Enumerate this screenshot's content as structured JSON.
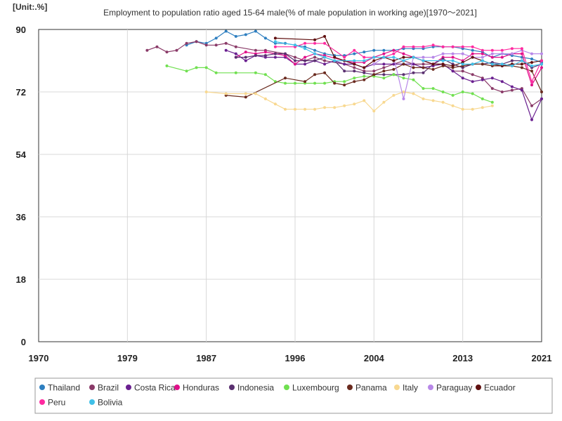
{
  "chart_data": {
    "type": "line",
    "unit_label": "[Unit:.%]",
    "title": "Employment to population ratio aged 15-64 male(% of male population in working age)[1970〜2021]",
    "xlim": [
      1970,
      2021
    ],
    "ylim": [
      0,
      90
    ],
    "x_ticks": [
      1970,
      1979,
      1987,
      1996,
      2004,
      2013,
      2021
    ],
    "y_ticks": [
      0,
      18,
      36,
      54,
      72,
      90
    ],
    "grid": true,
    "legend_position": "bottom",
    "series": [
      {
        "name": "Thailand",
        "color": "#2e7fc0",
        "x": [
          1985,
          1986,
          1987,
          1988,
          1989,
          1990,
          1991,
          1992,
          1993,
          1994,
          1995,
          1996,
          1997,
          1998,
          1999,
          2000,
          2001,
          2002,
          2003,
          2004,
          2005,
          2006,
          2007,
          2008,
          2009,
          2010,
          2011,
          2012,
          2013,
          2014,
          2015,
          2016,
          2017,
          2018,
          2019,
          2020,
          2021
        ],
        "y": [
          85.5,
          86.5,
          86,
          87.5,
          89.5,
          88,
          88.5,
          89.5,
          87.5,
          86,
          86,
          85.5,
          85,
          84,
          83,
          82.5,
          82.5,
          83,
          83.5,
          84,
          84,
          84,
          84.5,
          84.5,
          84.5,
          85,
          85,
          85,
          84.5,
          84,
          83.5,
          82,
          83,
          82.5,
          82,
          81.5,
          80.5
        ]
      },
      {
        "name": "Brazil",
        "color": "#8a3a68",
        "x": [
          1981,
          1982,
          1983,
          1984,
          1985,
          1986,
          1987,
          1988,
          1989,
          1990,
          1992,
          1993,
          1995,
          1996,
          1997,
          1998,
          1999,
          2001,
          2002,
          2003,
          2004,
          2005,
          2006,
          2007,
          2008,
          2009,
          2011,
          2012,
          2013,
          2014,
          2015,
          2016,
          2017,
          2018,
          2019,
          2020,
          2021
        ],
        "y": [
          84,
          85,
          83.5,
          84,
          86,
          86.5,
          85.5,
          85.5,
          86,
          85,
          84,
          84,
          83,
          82,
          81,
          82,
          81,
          80,
          79,
          78,
          78,
          79,
          80,
          81,
          80,
          80,
          80,
          78,
          78,
          77,
          76,
          73,
          72,
          72.5,
          73,
          68,
          70
        ]
      },
      {
        "name": "Costa Rica",
        "color": "#6a2090",
        "x": [
          1989,
          1990,
          1991,
          1992,
          1993,
          1994,
          1995,
          1996,
          1997,
          1998,
          1999,
          2000,
          2001,
          2002,
          2003,
          2004,
          2005,
          2006,
          2007,
          2008,
          2009,
          2010,
          2011,
          2012,
          2013,
          2014,
          2015,
          2016,
          2017,
          2018,
          2019,
          2020,
          2021
        ],
        "y": [
          84,
          83,
          81,
          82.5,
          82,
          82,
          82,
          80,
          80,
          81,
          80,
          81,
          80,
          80,
          79,
          80,
          80,
          80,
          80,
          80,
          79,
          79.5,
          80,
          78,
          76,
          75,
          75.5,
          76,
          75,
          73.5,
          72.5,
          64,
          70
        ]
      },
      {
        "name": "Honduras",
        "color": "#e0108a",
        "x": [
          1990,
          1991,
          1992,
          1993,
          1994,
          1995,
          1996,
          1997,
          1998,
          1999,
          2001,
          2002,
          2003,
          2004,
          2005,
          2006,
          2007,
          2008,
          2009,
          2010,
          2011,
          2012,
          2013,
          2014,
          2015,
          2016,
          2017,
          2018,
          2019,
          2020,
          2021
        ],
        "y": [
          82,
          83.5,
          83,
          83.5,
          83,
          82.5,
          80,
          82,
          83,
          82.5,
          81,
          80.5,
          80.5,
          82,
          83,
          84,
          83,
          82,
          81,
          80,
          82,
          82,
          81,
          83,
          83,
          82,
          82,
          83,
          83,
          74,
          79
        ]
      },
      {
        "name": "Indonesia",
        "color": "#5a3070",
        "x": [
          1990,
          1991,
          1992,
          1993,
          1994,
          1995,
          1996,
          1997,
          1998,
          1999,
          2000,
          2001,
          2002,
          2003,
          2004,
          2005,
          2006,
          2007,
          2008,
          2009,
          2010,
          2011,
          2012,
          2013,
          2014,
          2015,
          2016,
          2017,
          2018,
          2019,
          2020,
          2021
        ],
        "y": [
          82,
          82,
          82.5,
          82.5,
          83,
          83,
          81,
          81,
          81,
          82,
          81,
          78,
          78,
          77.5,
          77,
          77,
          77,
          77,
          77.5,
          77.5,
          80,
          81.5,
          80,
          79,
          80,
          80,
          80.5,
          80,
          81,
          81,
          79,
          80
        ]
      },
      {
        "name": "Luxembourg",
        "color": "#70e050",
        "x": [
          1983,
          1985,
          1986,
          1987,
          1988,
          1990,
          1992,
          1993,
          1994,
          1995,
          1996,
          1997,
          1998,
          1999,
          2000,
          2001,
          2002,
          2003,
          2004,
          2005,
          2006,
          2007,
          2008,
          2009,
          2010,
          2011,
          2012,
          2013,
          2014,
          2015,
          2016
        ],
        "y": [
          79.5,
          78,
          79,
          79,
          77.5,
          77.5,
          77.5,
          77,
          75,
          74.5,
          74.5,
          74.5,
          74.5,
          74.5,
          75,
          75,
          76,
          76.5,
          76.5,
          76,
          77,
          76,
          75.5,
          73,
          73,
          72,
          71,
          72,
          71.5,
          70,
          69
        ]
      },
      {
        "name": "Panama",
        "color": "#6a2a1e",
        "x": [
          1989,
          1991,
          1995,
          1997,
          1998,
          1999,
          2000,
          2001,
          2002,
          2003,
          2004,
          2005,
          2006,
          2007,
          2008,
          2009,
          2010,
          2011,
          2012,
          2013,
          2014,
          2015,
          2016,
          2017,
          2018,
          2019,
          2020,
          2021
        ],
        "y": [
          71,
          70.5,
          76,
          75,
          77,
          77.5,
          74.5,
          74,
          75,
          75.5,
          77,
          78,
          78.5,
          80,
          79,
          79,
          78.5,
          79.5,
          79,
          79.5,
          80,
          80,
          79.5,
          79.5,
          79.5,
          79,
          78,
          72
        ]
      },
      {
        "name": "Italy",
        "color": "#f8d890",
        "x": [
          1987,
          1989,
          1991,
          1992,
          1993,
          1994,
          1995,
          1996,
          1997,
          1998,
          1999,
          2000,
          2001,
          2002,
          2003,
          2004,
          2005,
          2006,
          2007,
          2008,
          2009,
          2010,
          2011,
          2012,
          2013,
          2014,
          2015,
          2016
        ],
        "y": [
          72,
          71.5,
          71.5,
          71.5,
          70,
          68.5,
          67,
          67,
          67,
          67,
          67.5,
          67.5,
          68,
          68.5,
          69.5,
          66.5,
          69,
          71,
          72,
          71.5,
          70,
          69.5,
          69,
          68,
          67,
          67,
          67.5,
          68
        ]
      },
      {
        "name": "Paraguay",
        "color": "#b888e8",
        "x": [
          2004,
          2005,
          2006,
          2007,
          2008,
          2009,
          2010,
          2011,
          2012,
          2013,
          2014,
          2015,
          2016,
          2017,
          2018,
          2019,
          2020,
          2021
        ],
        "y": [
          80,
          82,
          82,
          70,
          82,
          82,
          82,
          83,
          83,
          83,
          82,
          82,
          83,
          83,
          83,
          84,
          83,
          83
        ]
      },
      {
        "name": "Ecuador",
        "color": "#601010",
        "x": [
          1994,
          1998,
          1999,
          2000,
          2001,
          2002,
          2003,
          2004,
          2005,
          2006,
          2007,
          2008,
          2009,
          2010,
          2011,
          2012,
          2013,
          2014,
          2015,
          2016,
          2017,
          2018,
          2019,
          2020,
          2021
        ],
        "y": [
          87.5,
          87,
          88,
          82,
          81,
          80,
          79,
          81,
          82,
          81,
          82,
          82,
          81,
          80,
          80,
          79.5,
          80.5,
          82,
          81,
          80,
          79.5,
          80,
          80,
          80.5,
          81
        ]
      },
      {
        "name": "Peru",
        "color": "#ff2aa0",
        "x": [
          1994,
          1996,
          1997,
          1998,
          1999,
          2001,
          2002,
          2003,
          2004,
          2005,
          2006,
          2007,
          2008,
          2009,
          2010,
          2011,
          2012,
          2013,
          2014,
          2015,
          2016,
          2017,
          2018,
          2019,
          2020,
          2021
        ],
        "y": [
          85,
          85,
          86,
          86,
          86,
          82,
          84,
          82,
          82,
          82,
          83,
          85,
          85,
          85,
          85.5,
          85,
          85,
          85,
          85,
          84,
          84,
          84,
          84.5,
          84.5,
          75,
          81
        ]
      },
      {
        "name": "Bolivia",
        "color": "#40c0e8",
        "x": [
          1994,
          1996,
          1997,
          1998,
          1999,
          2000,
          2002,
          2003,
          2004,
          2005,
          2006,
          2007,
          2008,
          2009,
          2011,
          2012,
          2013,
          2014,
          2015,
          2016,
          2017,
          2018,
          2019,
          2020,
          2021
        ],
        "y": [
          86.5,
          85.5,
          84.5,
          83,
          82,
          81,
          81,
          81,
          82,
          82,
          82,
          81,
          82,
          81,
          81,
          81,
          80,
          80,
          81,
          80,
          80,
          79.5,
          81,
          79.5,
          80
        ]
      }
    ]
  }
}
